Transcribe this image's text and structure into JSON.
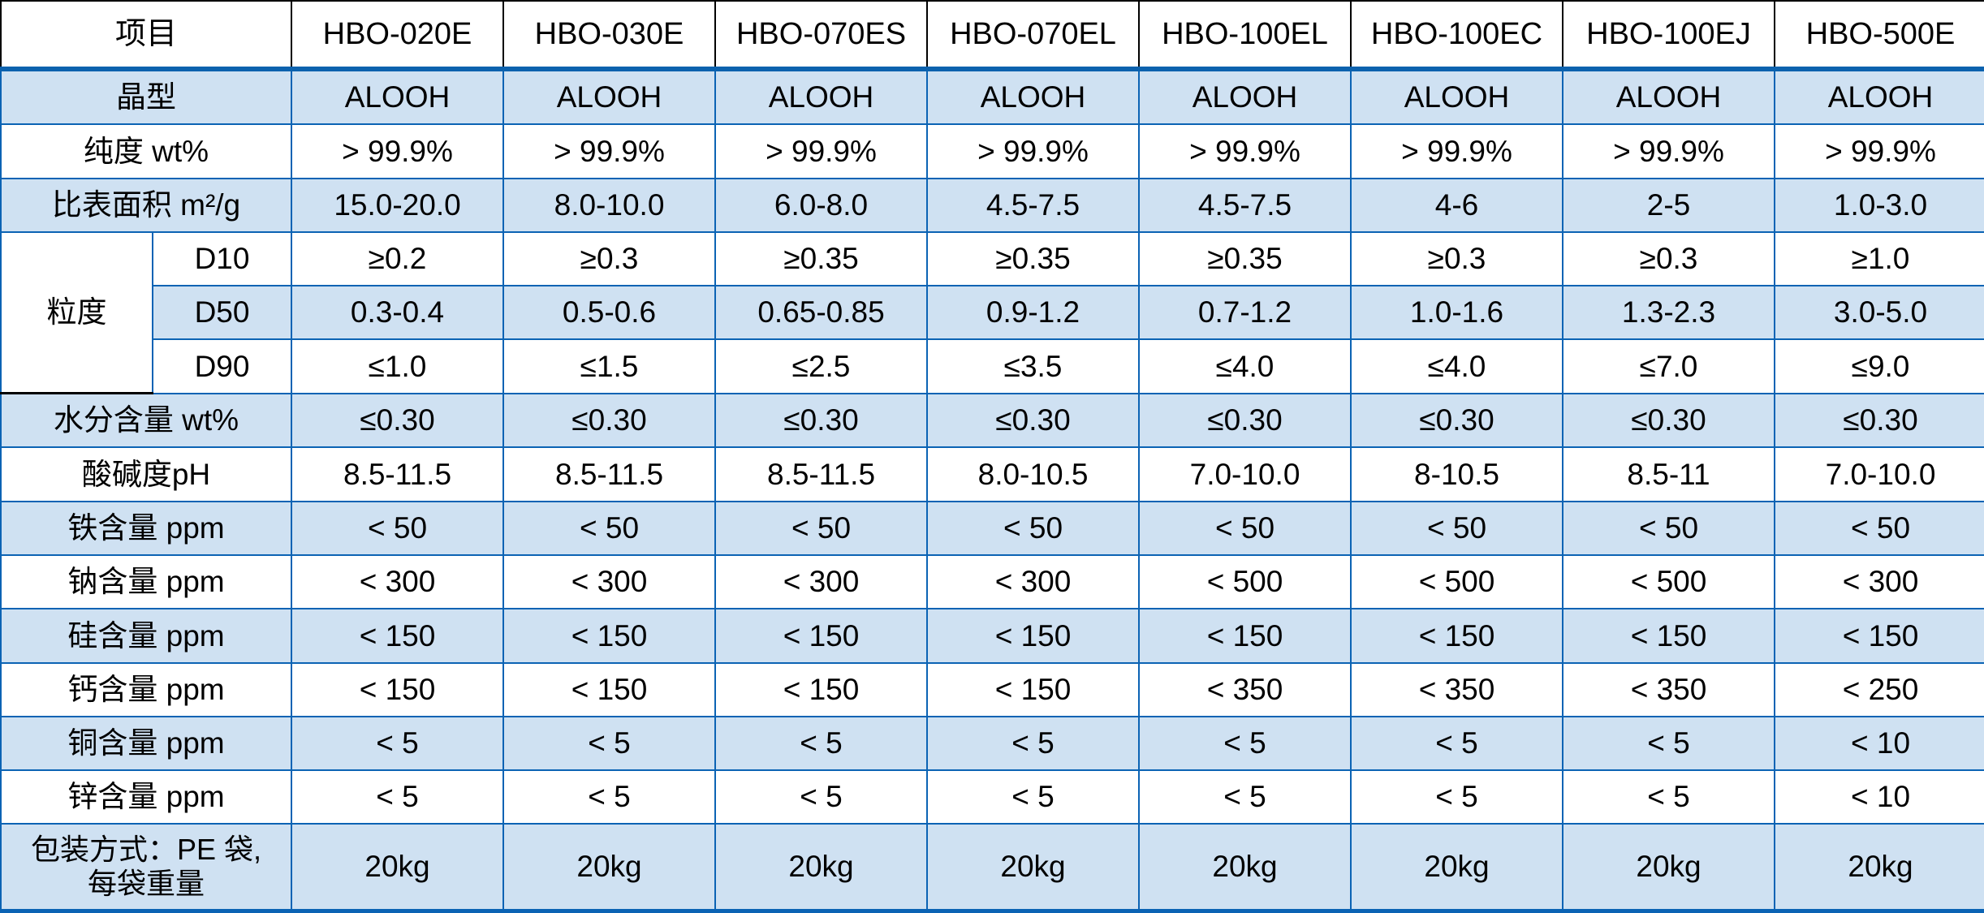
{
  "table": {
    "corner_label": "项目",
    "product_columns": [
      "HBO-020E",
      "HBO-030E",
      "HBO-070ES",
      "HBO-070EL",
      "HBO-100EL",
      "HBO-100EC",
      "HBO-100EJ",
      "HBO-500E"
    ],
    "particle_group_label": "粒度",
    "rows": [
      {
        "label": "晶型",
        "shaded": true,
        "values": [
          "ALOOH",
          "ALOOH",
          "ALOOH",
          "ALOOH",
          "ALOOH",
          "ALOOH",
          "ALOOH",
          "ALOOH"
        ]
      },
      {
        "label": "纯度 wt%",
        "shaded": false,
        "values": [
          "> 99.9%",
          "> 99.9%",
          "> 99.9%",
          "> 99.9%",
          "> 99.9%",
          "> 99.9%",
          "> 99.9%",
          "> 99.9%"
        ]
      },
      {
        "label": "比表面积 m²/g",
        "shaded": true,
        "values": [
          "15.0-20.0",
          "8.0-10.0",
          "6.0-8.0",
          "4.5-7.5",
          "4.5-7.5",
          "4-6",
          "2-5",
          "1.0-3.0"
        ]
      },
      {
        "label": "D10",
        "group": true,
        "group_start": true,
        "shaded": false,
        "values": [
          "≥0.2",
          "≥0.3",
          "≥0.35",
          "≥0.35",
          "≥0.35",
          "≥0.3",
          "≥0.3",
          "≥1.0"
        ]
      },
      {
        "label": "D50",
        "group": true,
        "shaded": true,
        "values": [
          "0.3-0.4",
          "0.5-0.6",
          "0.65-0.85",
          "0.9-1.2",
          "0.7-1.2",
          "1.0-1.6",
          "1.3-2.3",
          "3.0-5.0"
        ]
      },
      {
        "label": "D90",
        "group": true,
        "shaded": false,
        "values": [
          "≤1.0",
          "≤1.5",
          "≤2.5",
          "≤3.5",
          "≤4.0",
          "≤4.0",
          "≤7.0",
          "≤9.0"
        ]
      },
      {
        "label": "水分含量 wt%",
        "shaded": true,
        "values": [
          "≤0.30",
          "≤0.30",
          "≤0.30",
          "≤0.30",
          "≤0.30",
          "≤0.30",
          "≤0.30",
          "≤0.30"
        ]
      },
      {
        "label": "酸碱度pH",
        "shaded": false,
        "values": [
          "8.5-11.5",
          "8.5-11.5",
          "8.5-11.5",
          "8.0-10.5",
          "7.0-10.0",
          "8-10.5",
          "8.5-11",
          "7.0-10.0"
        ]
      },
      {
        "label": "铁含量 ppm",
        "shaded": true,
        "values": [
          "< 50",
          "< 50",
          "< 50",
          "< 50",
          "< 50",
          "< 50",
          "< 50",
          "< 50"
        ]
      },
      {
        "label": "钠含量 ppm",
        "shaded": false,
        "values": [
          "< 300",
          "< 300",
          "< 300",
          "< 300",
          "< 500",
          "< 500",
          "< 500",
          "< 300"
        ]
      },
      {
        "label": "硅含量 ppm",
        "shaded": true,
        "values": [
          "< 150",
          "< 150",
          "< 150",
          "< 150",
          "< 150",
          "< 150",
          "< 150",
          "< 150"
        ]
      },
      {
        "label": "钙含量 ppm",
        "shaded": false,
        "values": [
          "< 150",
          "< 150",
          "< 150",
          "< 150",
          "< 350",
          "< 350",
          "< 350",
          "< 250"
        ]
      },
      {
        "label": "铜含量 ppm",
        "shaded": true,
        "values": [
          "< 5",
          "< 5",
          "< 5",
          "< 5",
          "< 5",
          "< 5",
          "< 5",
          "< 10"
        ]
      },
      {
        "label": "锌含量 ppm",
        "shaded": false,
        "values": [
          "< 5",
          "< 5",
          "< 5",
          "< 5",
          "< 5",
          "< 5",
          "< 5",
          "< 10"
        ]
      },
      {
        "label": "包装方式：PE 袋,\n每袋重量",
        "shaded": true,
        "tall": true,
        "values": [
          "20kg",
          "20kg",
          "20kg",
          "20kg",
          "20kg",
          "20kg",
          "20kg",
          "20kg"
        ]
      }
    ]
  },
  "colors": {
    "row_shade": "#cfe1f2",
    "grid_border": "#0b63b4",
    "header_border": "#000000",
    "header_divider": "#0c62ae",
    "text": "#000000"
  }
}
